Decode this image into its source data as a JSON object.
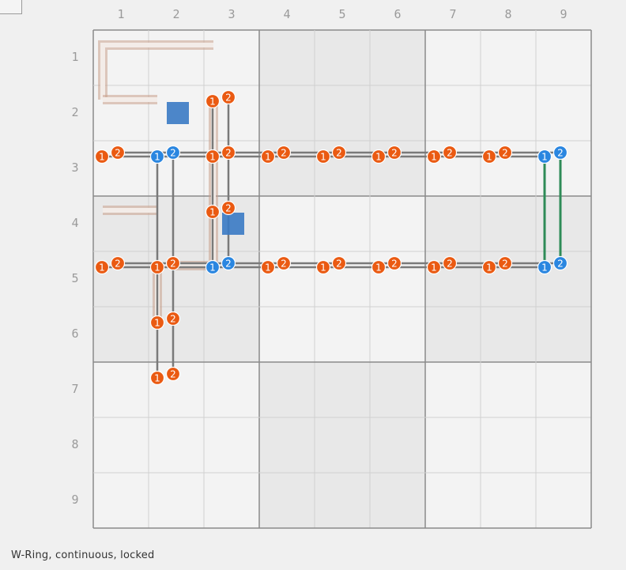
{
  "window": {
    "corner_button_label": ""
  },
  "board": {
    "columns": [
      "1",
      "2",
      "3",
      "4",
      "5",
      "6",
      "7",
      "8",
      "9"
    ],
    "rows": [
      "1",
      "2",
      "3",
      "4",
      "5",
      "6",
      "7",
      "8",
      "9"
    ]
  },
  "status": {
    "text": "W-Ring, continuous, locked"
  },
  "colors": {
    "background": "#f0f0f0",
    "board": "#f3f3f3",
    "shaded_block": "#e8e8e8",
    "grid_minor": "#d0d0d0",
    "grid_major": "#8a8a8a",
    "node_orange": "#ea5a12",
    "node_blue": "#2a86e0",
    "wire": "#7a7a7a",
    "wire_green": "#2e8b57",
    "highlight_path": "#c9a08c",
    "cursor_square": "#3a7ac4"
  }
}
